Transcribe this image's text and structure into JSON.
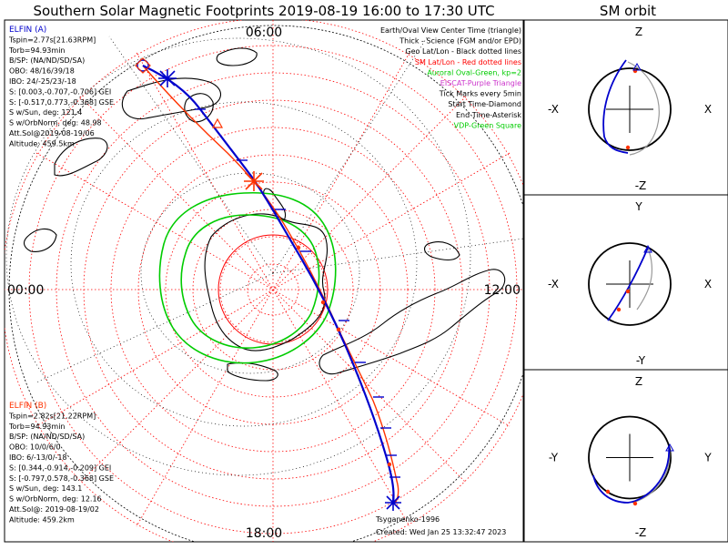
{
  "title": "Southern Solar Magnetic Footprints 2019-08-19 16:00 to 17:30 UTC",
  "sm_title": "SM orbit",
  "colors": {
    "elfin_a": "#0000cc",
    "elfin_b": "#ff3300",
    "geo_grid": "#000000",
    "sm_grid": "#ff0000",
    "oval": "#00cc00",
    "eiscat": "#cc33cc",
    "vdp": "#00cc00"
  },
  "map": {
    "tick_top": "06:00",
    "tick_bottom": "18:00",
    "tick_left": "00:00",
    "tick_right": "12:00",
    "credit": "Tsyganenko-1996",
    "created": "Created: Wed Jan 25 13:32:47 2023"
  },
  "legend": [
    {
      "text": "Earth/Oval View Center Time (triangle)",
      "color": "#000000"
    },
    {
      "text": "Thick - Science (FGM and/or EPD)",
      "color": "#000000"
    },
    {
      "text": "Geo Lat/Lon - Black dotted lines",
      "color": "#000000"
    },
    {
      "text": "SM Lat/Lon - Red dotted lines",
      "color": "#ff0000"
    },
    {
      "text": "Auroral Oval-Green, kp=2",
      "color": "#00cc00"
    },
    {
      "text": "EISCAT-Purple Triangle",
      "color": "#cc33cc"
    },
    {
      "text": "Tick Marks every 5min",
      "color": "#000000"
    },
    {
      "text": "Start Time-Diamond",
      "color": "#000000"
    },
    {
      "text": "End Time-Asterisk",
      "color": "#000000"
    },
    {
      "text": "VDP-Green Square",
      "color": "#00cc00"
    }
  ],
  "elfin_a": {
    "name": "ELFIN (A)",
    "lines": [
      "Tspin=2.77s[21.63RPM]",
      "Torb=94.93min",
      "B/SP: (NA/ND/SD/SA)",
      "OBO: 48/16/39/18",
      "IBO: 24/-25/23/-18",
      "S: [0.003,-0.707,-0.706] GEI",
      "S: [-0.517,0.773,-0.368] GSE",
      "S w/Sun, deg: 121.4",
      "S w/OrbNorm, deg: 48.98",
      "Att.Sol@2019-08-19/06",
      "Altitude: 459.5km"
    ]
  },
  "elfin_b": {
    "name": "ELFIN (B)",
    "lines": [
      "Tspin=2.82s[21.22RPM]",
      "Torb=94.93min",
      "B/SP: (NA/ND/SD/SA)",
      "OBO: 10/0/6/0",
      "IBO: 6/-13/0/-18",
      "S: [0.344,-0.914,-0.209] GEI",
      "S: [-0.797,0.578,-0.368] GSE",
      "S w/Sun, deg: 143.1",
      "S w/OrbNorm, deg: 12.16",
      "Att.Sol@: 2019-08-19/02",
      "Altitude: 459.2km"
    ]
  },
  "sm_panels": [
    {
      "top": "Z",
      "bottom": "-Z",
      "left": "-X",
      "right": "X"
    },
    {
      "top": "Y",
      "bottom": "-Y",
      "left": "-X",
      "right": "X"
    },
    {
      "top": "Z",
      "bottom": "-Z",
      "left": "-Y",
      "right": "Y"
    }
  ],
  "chart_data": {
    "type": "scatter",
    "title": "Southern Solar Magnetic Footprints 2019-08-19 16:00 to 17:30 UTC",
    "projection": "south polar, magnetic local time",
    "mlt_labels": [
      "06:00",
      "18:00",
      "00:00",
      "12:00"
    ],
    "series": [
      {
        "name": "ELFIN (A)",
        "color": "#0000cc"
      },
      {
        "name": "ELFIN (B)",
        "color": "#ff3300"
      }
    ],
    "auroral_oval_kp": 2
  }
}
